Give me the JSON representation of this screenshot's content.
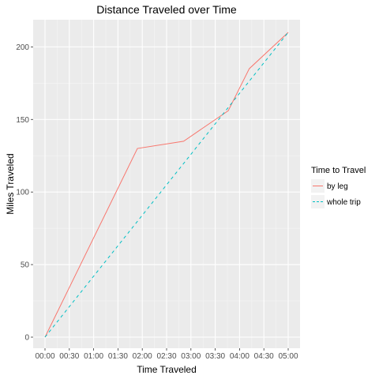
{
  "chart_data": {
    "type": "line",
    "title": "Distance Traveled over Time",
    "xlabel": "Time Traveled",
    "ylabel": "Miles Traveled",
    "x_tick_labels": [
      "00:00",
      "00:30",
      "01:00",
      "01:30",
      "02:00",
      "02:30",
      "03:00",
      "03:30",
      "04:00",
      "04:30",
      "05:00"
    ],
    "xlim": [
      "00:00",
      "05:00"
    ],
    "y_ticks": [
      0,
      50,
      100,
      150,
      200
    ],
    "ylim": [
      0,
      210
    ],
    "grid": true,
    "legend": {
      "title": "Time to Travel",
      "placement": "right"
    },
    "series": [
      {
        "name": "by leg",
        "color": "#F8766D",
        "line_style": "solid",
        "points": [
          {
            "x": "00:00",
            "y": 0
          },
          {
            "x": "01:54",
            "y": 130
          },
          {
            "x": "02:51",
            "y": 135
          },
          {
            "x": "03:46",
            "y": 156
          },
          {
            "x": "04:12",
            "y": 185
          },
          {
            "x": "05:00",
            "y": 210
          }
        ]
      },
      {
        "name": "whole trip",
        "color": "#00BFC4",
        "line_style": "dashed",
        "points": [
          {
            "x": "00:00",
            "y": 0
          },
          {
            "x": "05:00",
            "y": 210
          }
        ]
      }
    ]
  }
}
